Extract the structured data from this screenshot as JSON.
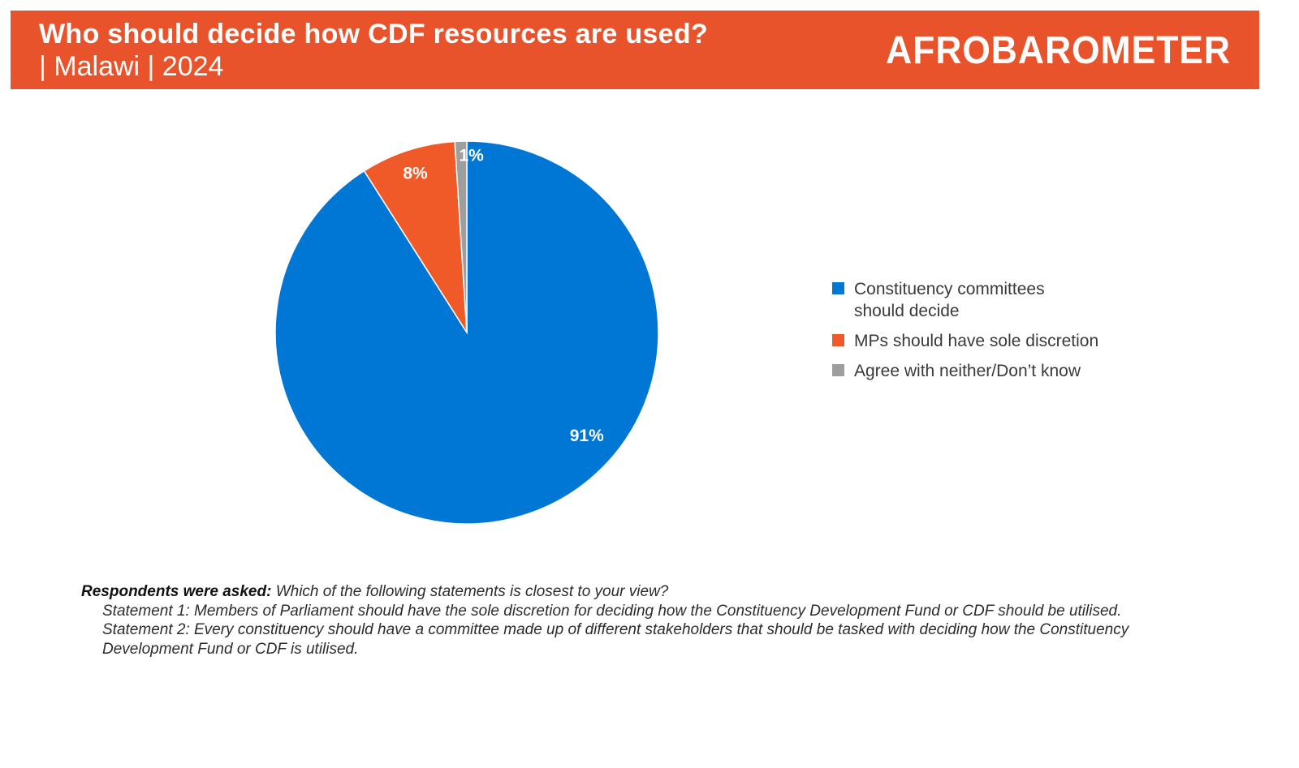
{
  "header": {
    "title": "Who should decide how CDF resources are used?",
    "subtitle": "| Malawi | 2024",
    "logo_text": "AFROBAROMETER"
  },
  "colors": {
    "brand": "#e8532b",
    "committees": "#0077d4",
    "mps": "#f05a28",
    "neither": "#9e9e9e"
  },
  "chart_data": {
    "type": "pie",
    "start_angle_deg": 0,
    "direction": "clockwise",
    "slices": [
      {
        "label": "Constituency committees should decide",
        "value": 91,
        "value_label": "91%",
        "color": "#0077d4"
      },
      {
        "label": "MPs should have sole discretion",
        "value": 8,
        "value_label": "8%",
        "color": "#f05a28"
      },
      {
        "label": "Agree with neither/Don’t know",
        "value": 1,
        "value_label": "1%",
        "color": "#9e9e9e"
      }
    ],
    "legend_position": "right"
  },
  "legend": {
    "items": [
      {
        "label": "Constituency committees should decide",
        "color": "#0077d4"
      },
      {
        "label": "MPs should have sole discretion",
        "color": "#f05a28"
      },
      {
        "label": "Agree with neither/Don’t know",
        "color": "#9e9e9e"
      }
    ]
  },
  "note": {
    "question_label": "Respondents were asked:",
    "question": " Which of the following statements is closest to your view?",
    "statement1": "Statement 1: Members of Parliament should have the sole discretion for deciding how the Constituency Development Fund or CDF should be utilised.",
    "statement2": "Statement 2: Every constituency should have a committee made up of different stakeholders that should be tasked with deciding how the Constituency Development Fund or CDF is utilised."
  }
}
